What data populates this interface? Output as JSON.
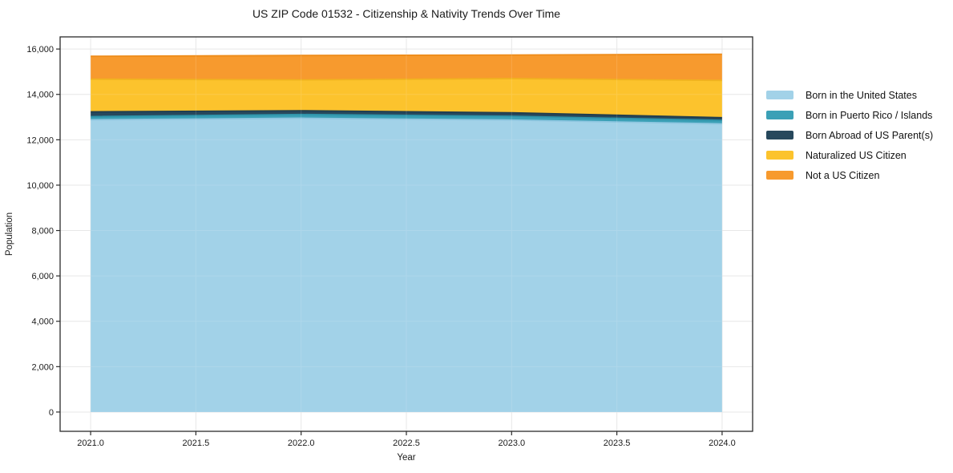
{
  "figure": {
    "background_color": "#ffffff",
    "spine_color": "#2b2b2b",
    "grid_color": "#e4e4e4",
    "text_color": "#1a1a1a"
  },
  "chart_data": {
    "type": "area",
    "stacked": true,
    "title": "US ZIP Code 01532 - Citizenship & Nativity Trends Over Time",
    "xlabel": "Year",
    "ylabel": "Population",
    "x": [
      2021,
      2022,
      2023,
      2024
    ],
    "series": [
      {
        "name": "Born in the United States",
        "color": "#a2d2e8",
        "line_color": "#8ec6e0",
        "values": [
          12880,
          12950,
          12870,
          12700
        ]
      },
      {
        "name": "Born in Puerto Rico / Islands",
        "color": "#3ba0b6",
        "line_color": "#2e93a9",
        "values": [
          140,
          165,
          165,
          155
        ]
      },
      {
        "name": "Born Abroad of US Parent(s)",
        "color": "#27485c",
        "line_color": "#1f3d4f",
        "values": [
          210,
          165,
          155,
          120
        ]
      },
      {
        "name": "Naturalized US Citizen",
        "color": "#fcc32d",
        "line_color": "#f0b31f",
        "values": [
          1440,
          1360,
          1505,
          1640
        ]
      },
      {
        "name": "Not a US Citizen",
        "color": "#f79a2e",
        "line_color": "#ee8c1a",
        "values": [
          1010,
          1075,
          1040,
          1155
        ]
      }
    ],
    "totals": [
      15680,
      15715,
      15735,
      15770
    ],
    "xlim": [
      2020.855,
      2024.145
    ],
    "ylim": [
      -850,
      16535
    ],
    "xticks": [
      2021.0,
      2021.5,
      2022.0,
      2022.5,
      2023.0,
      2023.5,
      2024.0
    ],
    "xtick_labels": [
      "2021.0",
      "2021.5",
      "2022.0",
      "2022.5",
      "2023.0",
      "2023.5",
      "2024.0"
    ],
    "yticks": [
      0,
      2000,
      4000,
      6000,
      8000,
      10000,
      12000,
      14000,
      16000
    ],
    "ytick_labels": [
      "0",
      "2,000",
      "4,000",
      "6,000",
      "8,000",
      "10,000",
      "12,000",
      "14,000",
      "16,000"
    ],
    "grid": true,
    "legend_position": "right of plot, frameless"
  }
}
